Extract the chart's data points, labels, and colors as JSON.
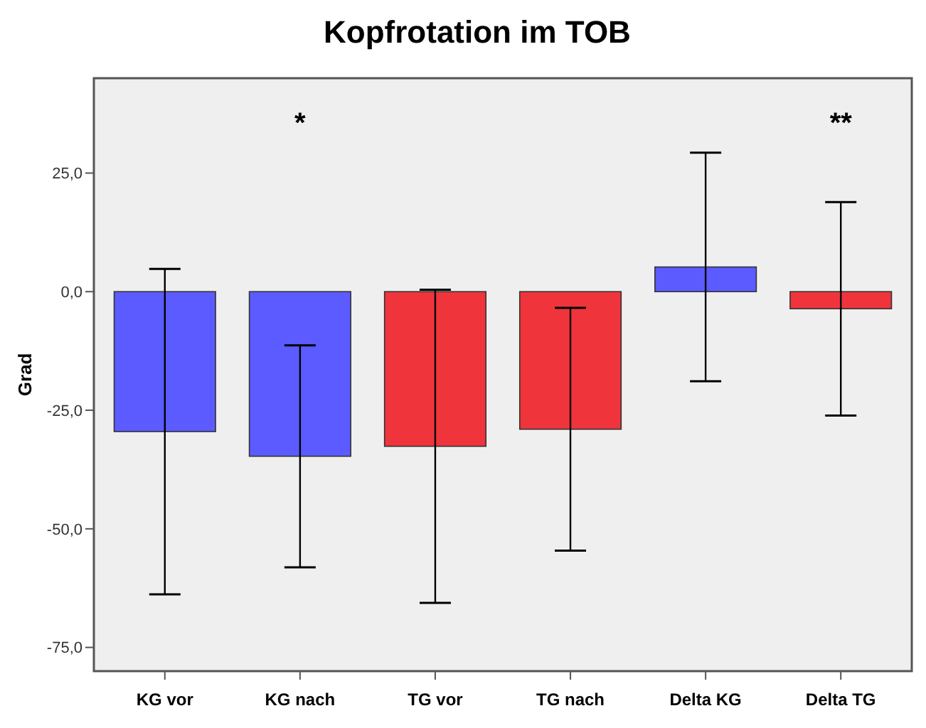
{
  "chart_data": {
    "type": "bar",
    "title": "Kopfrotation im TOB",
    "ylabel": "Grad",
    "categories": [
      "KG vor",
      "KG nach",
      "TG vor",
      "TG nach",
      "Delta KG",
      "Delta TG"
    ],
    "values": [
      -29.5,
      -34.7,
      -32.6,
      -29.0,
      5.2,
      -3.6
    ],
    "colors": [
      "#5b5bff",
      "#5b5bff",
      "#f0343c",
      "#f0343c",
      "#5b5bff",
      "#f0343c"
    ],
    "errors": [
      34.3,
      23.4,
      33,
      25.6,
      24.1,
      22.5
    ],
    "ylim": [
      -80,
      45
    ],
    "yticks": [
      {
        "value": -75,
        "label": "-75,0"
      },
      {
        "value": -50,
        "label": "-50,0"
      },
      {
        "value": -25,
        "label": "-25,0"
      },
      {
        "value": 0,
        "label": "0,0"
      },
      {
        "value": 25,
        "label": "25,0"
      }
    ],
    "annotations": [
      "*",
      "**"
    ],
    "grid": false
  }
}
